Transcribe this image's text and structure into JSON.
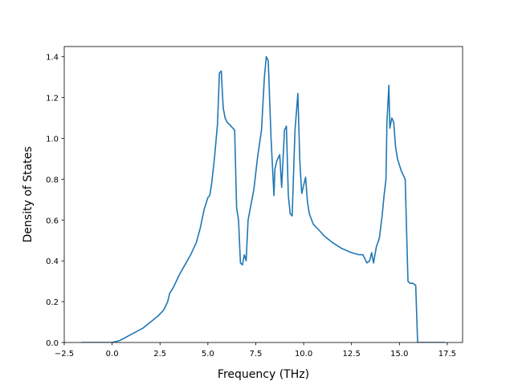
{
  "chart_data": {
    "type": "line",
    "xlabel": "Frequency (THz)",
    "ylabel": "Density of States",
    "xlim": [
      -2.5,
      18.3
    ],
    "ylim": [
      0,
      1.45
    ],
    "xticks": [
      -2.5,
      0.0,
      2.5,
      5.0,
      7.5,
      10.0,
      12.5,
      15.0,
      17.5
    ],
    "xtick_labels": [
      "−2.5",
      "0.0",
      "2.5",
      "5.0",
      "7.5",
      "10.0",
      "12.5",
      "15.0",
      "17.5"
    ],
    "yticks": [
      0.0,
      0.2,
      0.4,
      0.6,
      0.8,
      1.0,
      1.2,
      1.4
    ],
    "ytick_labels": [
      "0.0",
      "0.2",
      "0.4",
      "0.6",
      "0.8",
      "1.0",
      "1.2",
      "1.4"
    ],
    "grid": false,
    "series": [
      {
        "color": "#1f77b4",
        "x": [
          -1.6,
          0.0,
          0.4,
          0.8,
          1.2,
          1.6,
          2.0,
          2.4,
          2.7,
          2.9,
          3.0,
          3.2,
          3.5,
          3.8,
          4.1,
          4.4,
          4.6,
          4.8,
          5.0,
          5.1,
          5.2,
          5.35,
          5.5,
          5.6,
          5.7,
          5.8,
          5.9,
          6.0,
          6.2,
          6.4,
          6.5,
          6.6,
          6.7,
          6.8,
          6.9,
          7.0,
          7.1,
          7.2,
          7.4,
          7.6,
          7.8,
          7.95,
          8.05,
          8.15,
          8.3,
          8.45,
          8.5,
          8.6,
          8.75,
          8.85,
          9.0,
          9.1,
          9.2,
          9.3,
          9.4,
          9.55,
          9.7,
          9.8,
          9.9,
          10.0,
          10.1,
          10.2,
          10.3,
          10.5,
          10.8,
          11.1,
          11.5,
          12.0,
          12.5,
          12.9,
          13.1,
          13.3,
          13.45,
          13.55,
          13.65,
          13.8,
          13.95,
          14.1,
          14.2,
          14.3,
          14.35,
          14.45,
          14.5,
          14.6,
          14.7,
          14.8,
          14.9,
          15.1,
          15.3,
          15.45,
          15.55,
          15.7,
          15.85,
          15.95,
          16.2,
          17.4
        ],
        "y": [
          0.0,
          0.0,
          0.01,
          0.03,
          0.05,
          0.07,
          0.1,
          0.13,
          0.16,
          0.2,
          0.24,
          0.27,
          0.33,
          0.38,
          0.43,
          0.49,
          0.56,
          0.65,
          0.71,
          0.72,
          0.78,
          0.91,
          1.07,
          1.32,
          1.33,
          1.15,
          1.1,
          1.08,
          1.06,
          1.04,
          0.66,
          0.6,
          0.39,
          0.38,
          0.43,
          0.4,
          0.6,
          0.65,
          0.75,
          0.91,
          1.04,
          1.3,
          1.4,
          1.38,
          1.0,
          0.72,
          0.85,
          0.89,
          0.92,
          0.76,
          1.04,
          1.06,
          0.72,
          0.63,
          0.62,
          1.04,
          1.22,
          0.89,
          0.73,
          0.77,
          0.81,
          0.69,
          0.63,
          0.58,
          0.55,
          0.52,
          0.49,
          0.46,
          0.44,
          0.43,
          0.43,
          0.39,
          0.4,
          0.44,
          0.39,
          0.47,
          0.51,
          0.62,
          0.72,
          0.8,
          1.08,
          1.26,
          1.05,
          1.1,
          1.08,
          0.96,
          0.9,
          0.84,
          0.8,
          0.3,
          0.29,
          0.29,
          0.28,
          0.0,
          0.0,
          0.0
        ]
      }
    ]
  }
}
